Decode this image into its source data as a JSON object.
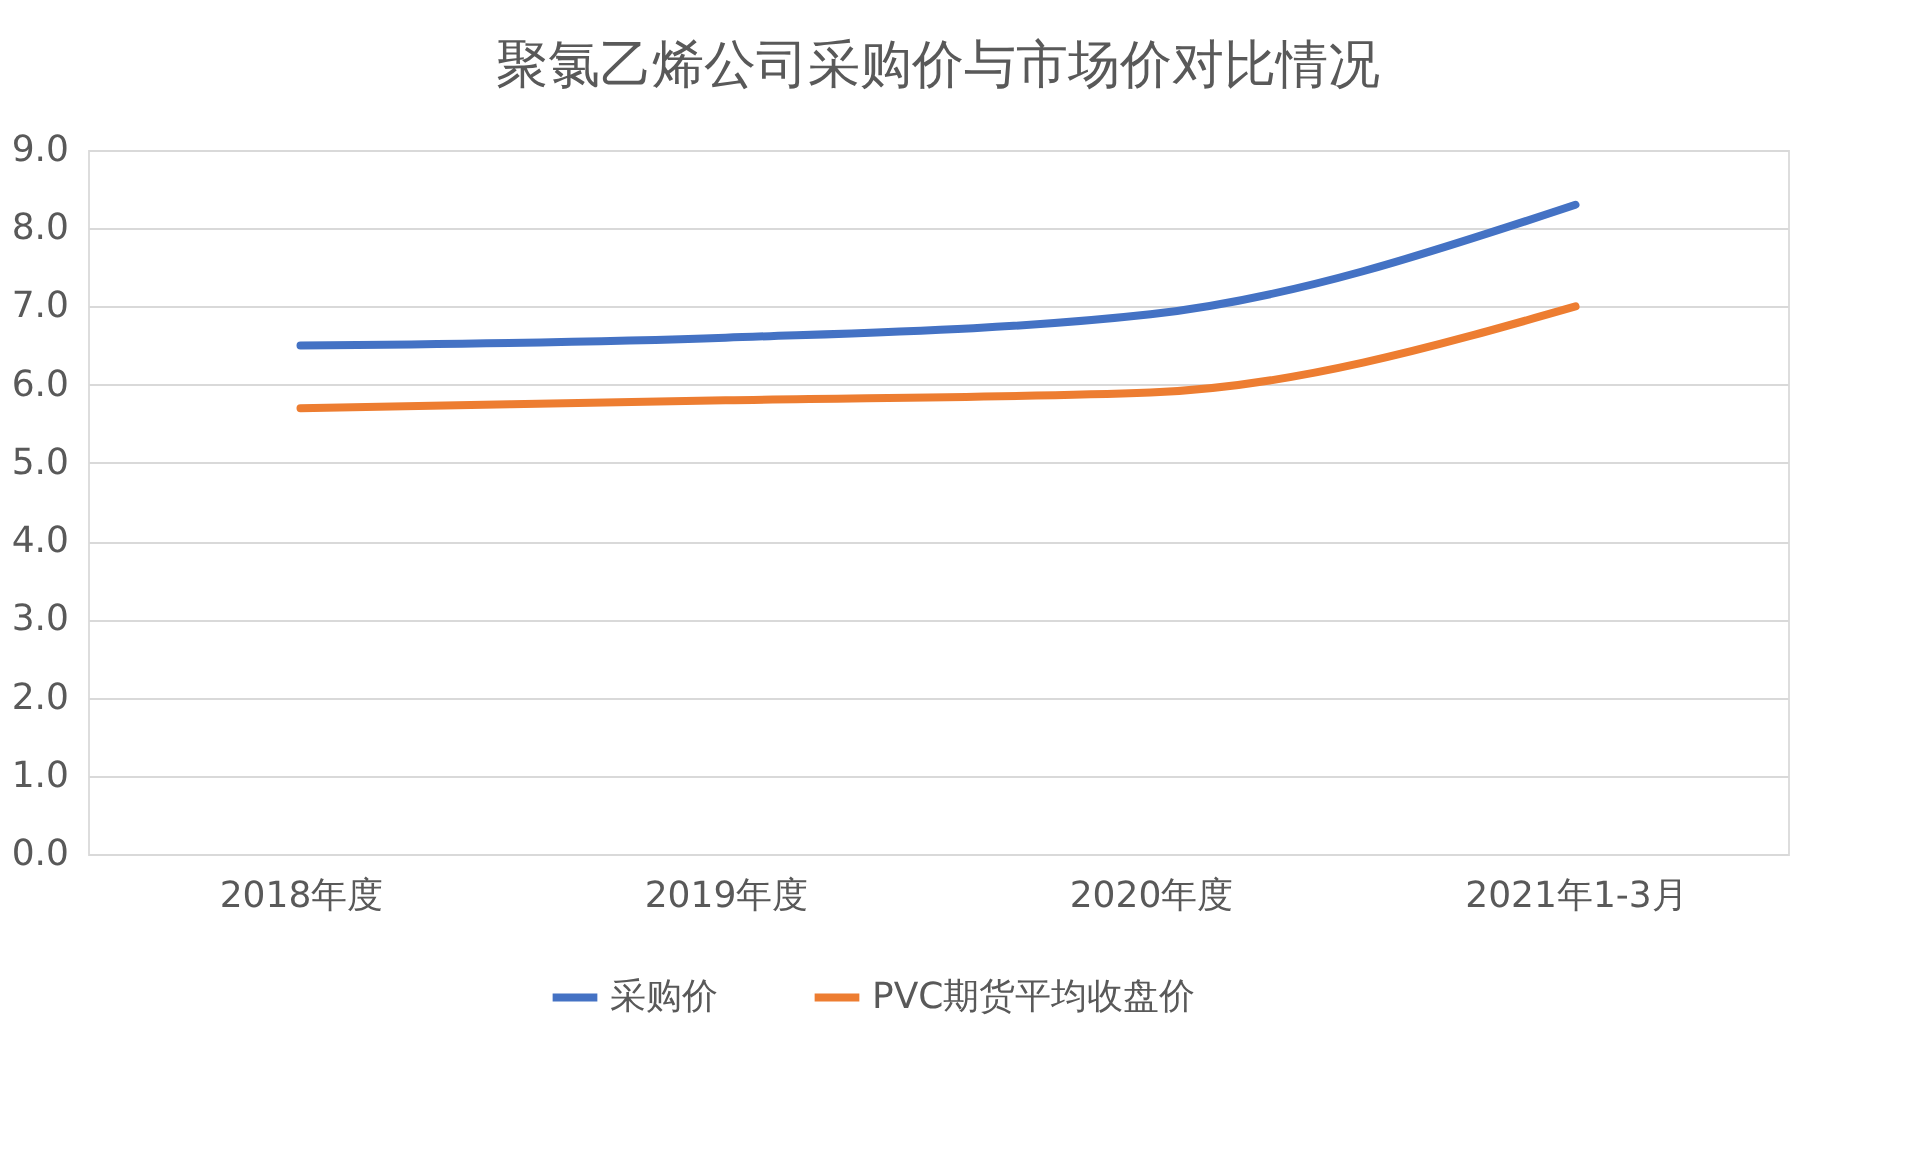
{
  "chart_data": {
    "type": "line",
    "title": "聚氯乙烯公司采购价与市场价对比情况",
    "categories": [
      "2018年度",
      "2019年度",
      "2020年度",
      "2021年1-3月"
    ],
    "series": [
      {
        "name": "采购价",
        "color": "#4472c4",
        "values": [
          6.5,
          6.6,
          6.9,
          8.3
        ]
      },
      {
        "name": "PVC期货平均收盘价",
        "color": "#ed7d31",
        "values": [
          5.7,
          5.8,
          5.9,
          7.0
        ]
      }
    ],
    "ylim": [
      0,
      9
    ],
    "yticks": [
      {
        "value": 0,
        "label": "0.0"
      },
      {
        "value": 1,
        "label": "1.0"
      },
      {
        "value": 2,
        "label": "2.0"
      },
      {
        "value": 3,
        "label": "3.0"
      },
      {
        "value": 4,
        "label": "4.0"
      },
      {
        "value": 5,
        "label": "5.0"
      },
      {
        "value": 6,
        "label": "6.0"
      },
      {
        "value": 7,
        "label": "7.0"
      },
      {
        "value": 8,
        "label": "8.0"
      },
      {
        "value": 9,
        "label": "9.0"
      }
    ],
    "grid": "y",
    "legend": "bottom",
    "marker": "none",
    "line_style": "solid"
  }
}
